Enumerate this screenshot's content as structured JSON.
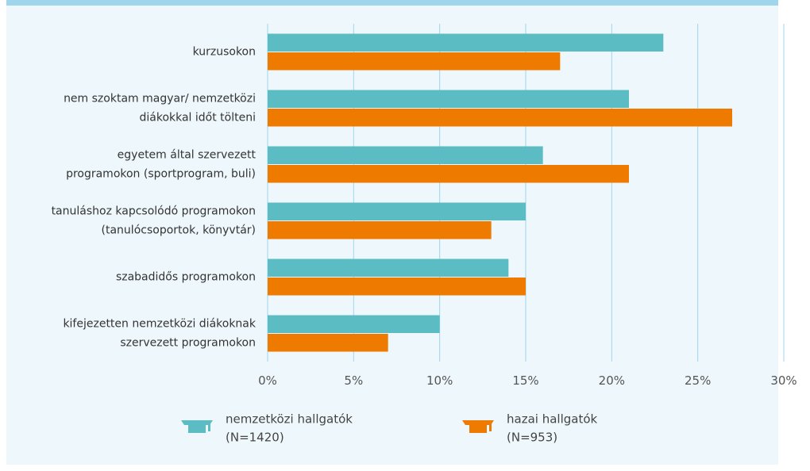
{
  "chart_data": {
    "type": "bar",
    "orientation": "horizontal",
    "categories": [
      "kurzusokon",
      "nem szoktam magyar/ nemzetközi\ndiákokkal időt tölteni",
      "egyetem által szervezett\nprogramokon (sportprogram, buli)",
      "tanuláshoz kapcsolódó programokon\n(tanulócsoportok, könyvtár)",
      "szabadidős programokon",
      "kifejezetten nemzetközi diákoknak\nszervezett programokon"
    ],
    "series": [
      {
        "name": "nemzetközi hallgatók\n(N=1420)",
        "color": "#5bbcc4",
        "values": [
          23,
          21,
          16,
          15,
          14,
          10
        ]
      },
      {
        "name": "hazai hallgatók\n(N=953)",
        "color": "#ef7a00",
        "values": [
          17,
          27,
          21,
          13,
          15,
          7
        ]
      }
    ],
    "xlim": [
      0,
      30
    ],
    "xticks": [
      {
        "value": 0,
        "label": "0%"
      },
      {
        "value": 5,
        "label": "5%"
      },
      {
        "value": 10,
        "label": "10%"
      },
      {
        "value": 15,
        "label": "15%"
      },
      {
        "value": 20,
        "label": "20%"
      },
      {
        "value": 25,
        "label": "25%"
      },
      {
        "value": 30,
        "label": "30%"
      }
    ],
    "grid": true,
    "legend": "bottom"
  }
}
